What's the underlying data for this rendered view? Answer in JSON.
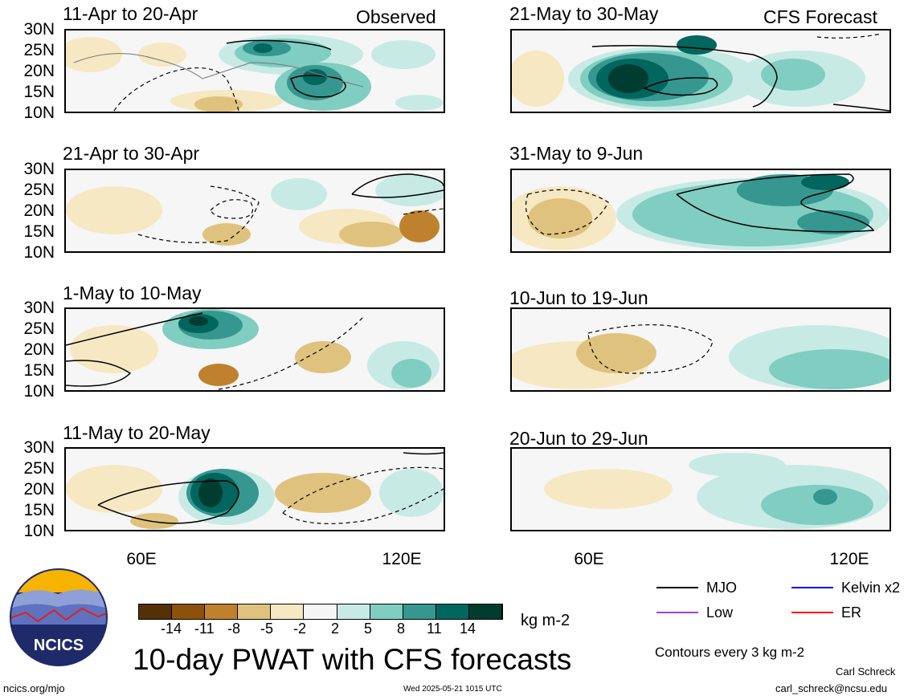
{
  "panels": {
    "observed_tag": "Observed",
    "forecast_tag": "CFS Forecast",
    "left": [
      {
        "title": "11-Apr to 20-Apr"
      },
      {
        "title": "21-Apr to 30-Apr"
      },
      {
        "title": "1-May to 10-May"
      },
      {
        "title": "11-May to 20-May"
      }
    ],
    "right": [
      {
        "title": "21-May to 30-May"
      },
      {
        "title": "31-May to 9-Jun"
      },
      {
        "title": "10-Jun to 19-Jun"
      },
      {
        "title": "20-Jun to 29-Jun"
      }
    ],
    "lat_labels": [
      "30N",
      "25N",
      "20N",
      "15N",
      "10N"
    ],
    "lon_labels": [
      "60E",
      "120E"
    ]
  },
  "colorbar": {
    "ticks": [
      "-14",
      "-11",
      "-8",
      "-5",
      "-2",
      "2",
      "5",
      "8",
      "11",
      "14"
    ],
    "unit": "kg m-2",
    "colors": [
      "#543005",
      "#8c510a",
      "#bf812d",
      "#dfc27d",
      "#f6e8c3",
      "#f5f5f5",
      "#c7eae5",
      "#80cdc1",
      "#35978f",
      "#01665e",
      "#003c30"
    ]
  },
  "legend": {
    "items": [
      {
        "label": "MJO",
        "color": "#000000"
      },
      {
        "label": "Kelvin x2",
        "color": "#0000ff"
      },
      {
        "label": "Low",
        "color": "#a040e0"
      },
      {
        "label": "ER",
        "color": "#ff0000"
      }
    ],
    "contours_note": "Contours every 3 kg m-2"
  },
  "main_title": "10-day PWAT with CFS forecasts",
  "logo_text": "NCICS",
  "footer": {
    "url": "ncics.org/mjo",
    "timestamp": "Wed 2025-05-21 1015 UTC",
    "author": "Carl Schreck",
    "email": "carl_schreck@ncsu.edu"
  }
}
